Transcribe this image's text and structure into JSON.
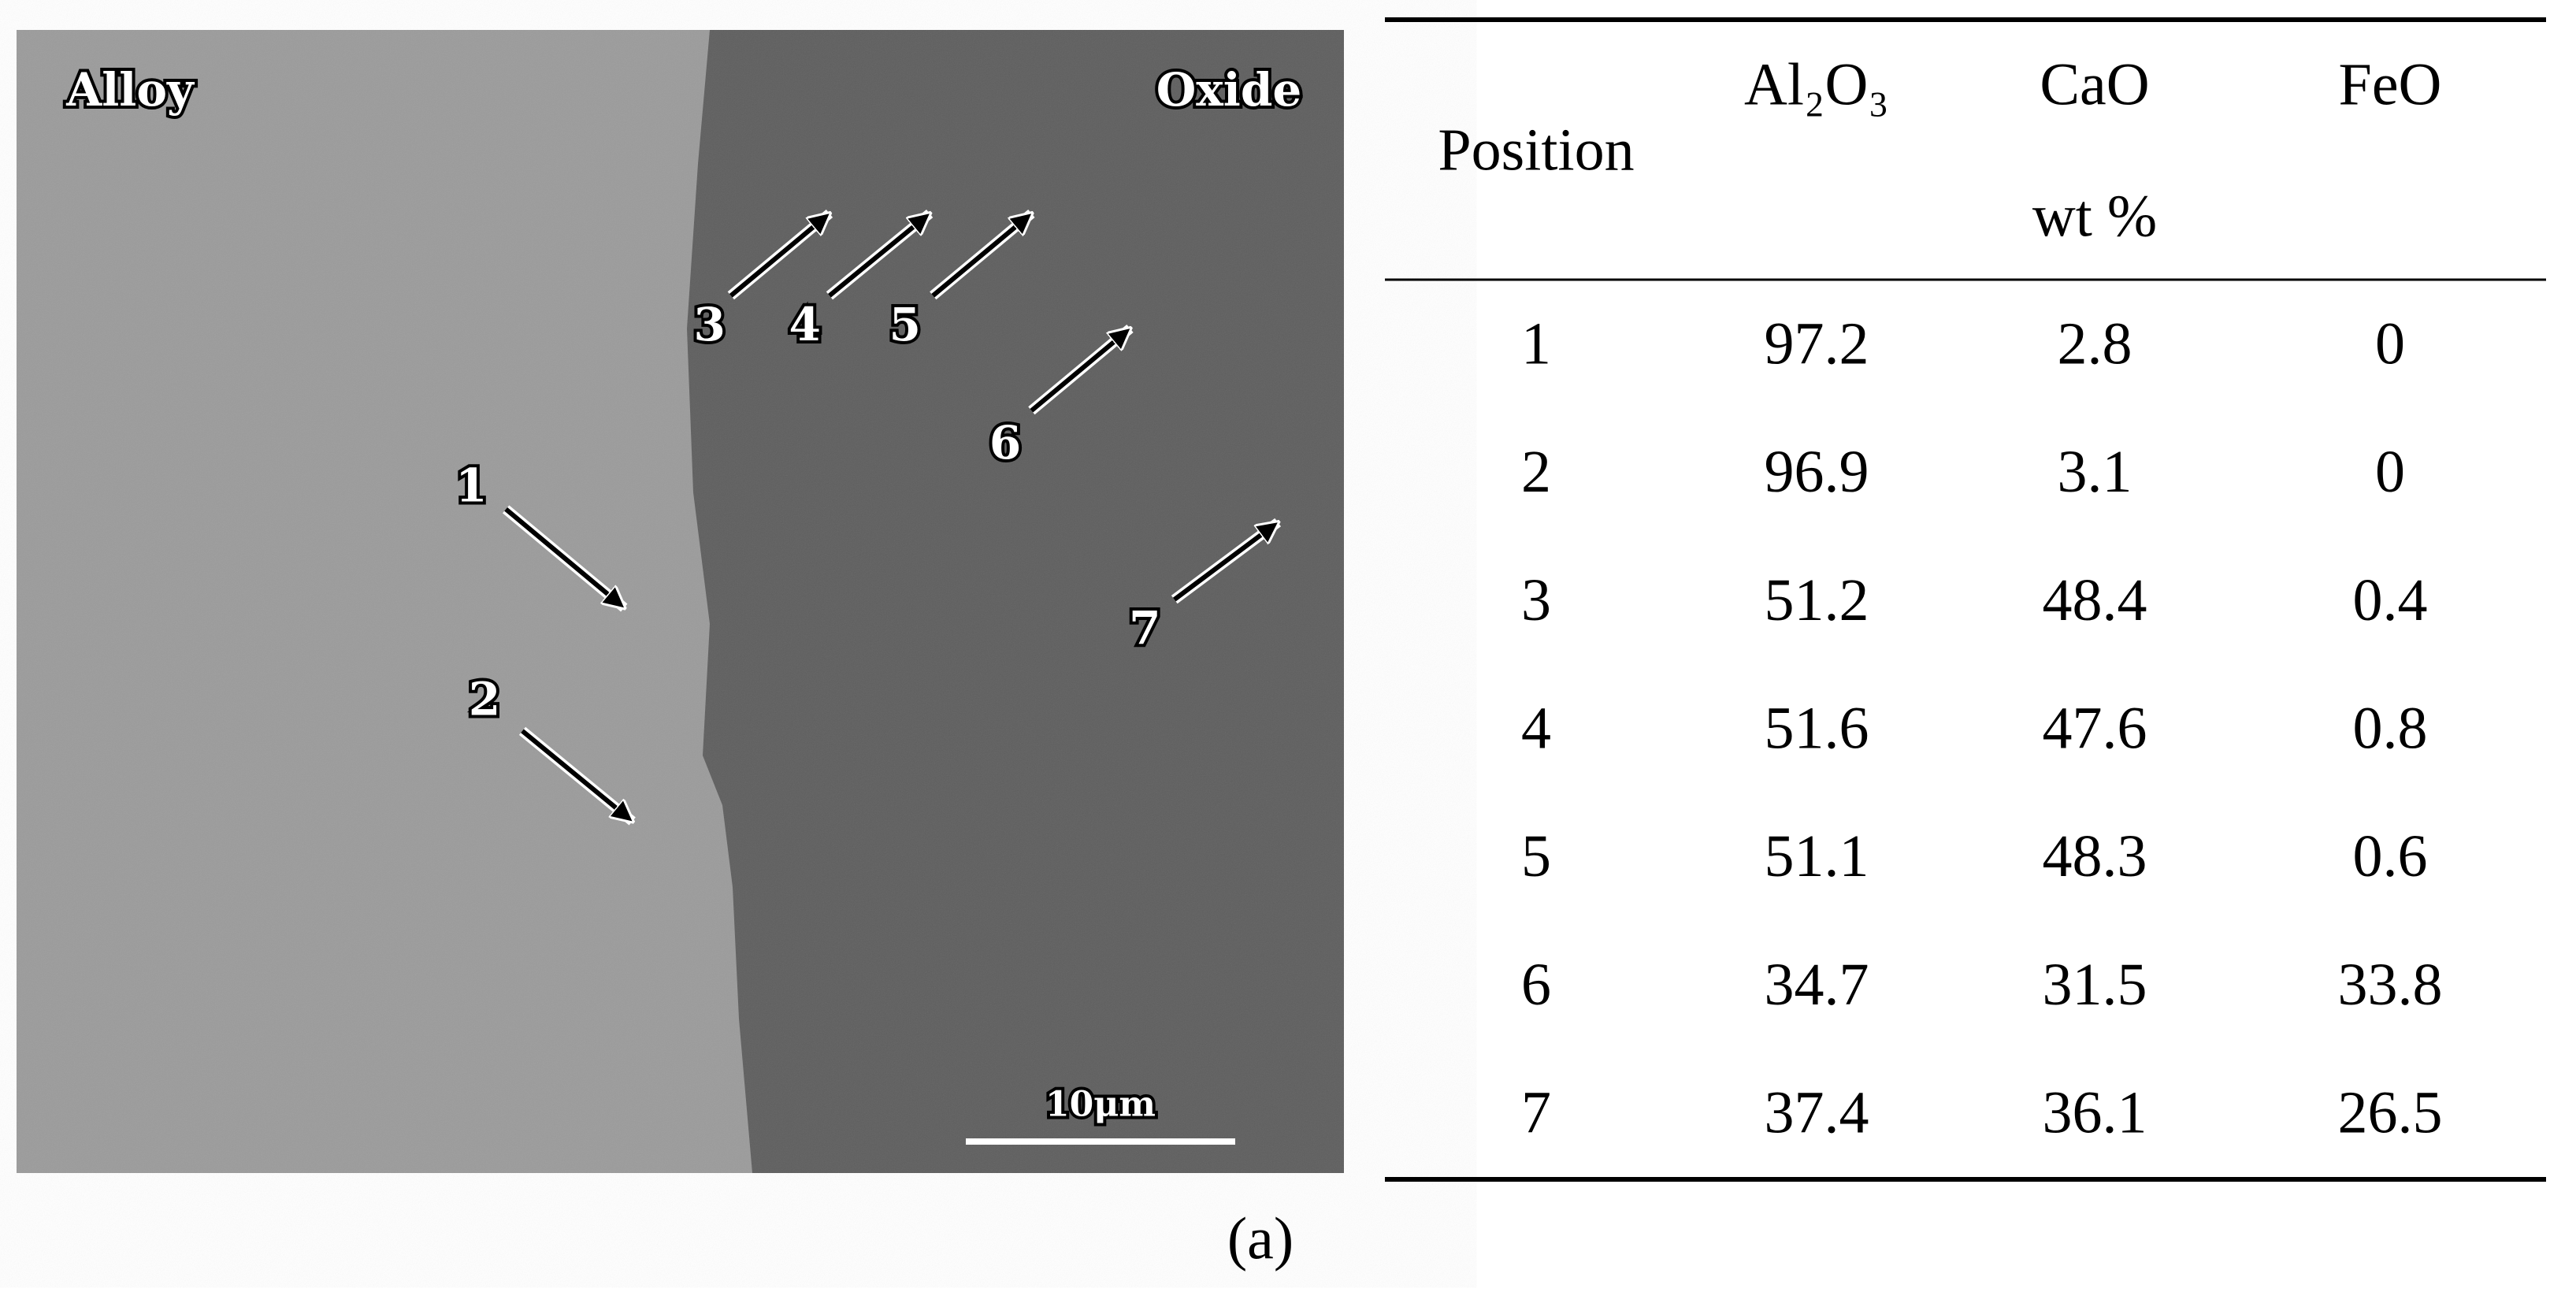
{
  "figure": {
    "image": {
      "left_label": "Alloy",
      "right_label": "Oxide",
      "markers": [
        "1",
        "2",
        "3",
        "4",
        "5",
        "6",
        "7"
      ],
      "scale_bar": "10μm"
    },
    "table": {
      "header": {
        "position": "Position",
        "columns": [
          "Al₂O₃",
          "CaO",
          "FeO"
        ],
        "unit": "wt %"
      },
      "rows": [
        [
          1,
          97.2,
          2.8,
          0
        ],
        [
          2,
          96.9,
          3.1,
          0
        ],
        [
          3,
          51.2,
          48.4,
          0.4
        ],
        [
          4,
          51.6,
          47.6,
          0.8
        ],
        [
          5,
          51.1,
          48.3,
          0.6
        ],
        [
          6,
          34.7,
          31.5,
          33.8
        ],
        [
          7,
          37.4,
          36.1,
          26.5
        ]
      ]
    },
    "caption": "(a)"
  }
}
